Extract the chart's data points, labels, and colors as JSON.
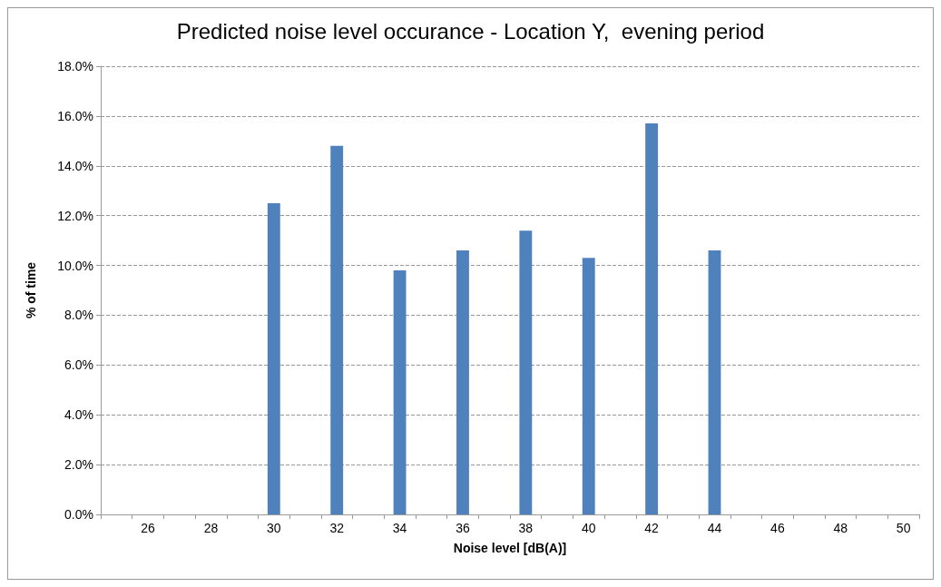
{
  "chart_data": {
    "type": "bar",
    "title": "Predicted noise level occurance - Location Y,  evening period",
    "xlabel": "Noise level [dB(A)]",
    "ylabel": "% of time",
    "categories": [
      null,
      "26",
      null,
      "28",
      null,
      "30",
      null,
      "32",
      null,
      "34",
      null,
      "36",
      null,
      "38",
      null,
      "40",
      null,
      "42",
      null,
      "44",
      null,
      "46",
      null,
      "48",
      null,
      "50"
    ],
    "values": [
      null,
      null,
      null,
      null,
      null,
      12.5,
      null,
      14.8,
      null,
      9.8,
      null,
      10.6,
      null,
      11.4,
      null,
      10.3,
      null,
      15.7,
      null,
      10.6,
      null,
      null,
      null,
      null,
      null,
      null
    ],
    "color": "#4f81bd",
    "ylim": [
      0,
      18
    ],
    "yticks": [
      {
        "value": 0,
        "label": "0.0%"
      },
      {
        "value": 2,
        "label": "2.0%"
      },
      {
        "value": 4,
        "label": "4.0%"
      },
      {
        "value": 6,
        "label": "6.0%"
      },
      {
        "value": 8,
        "label": "8.0%"
      },
      {
        "value": 10,
        "label": "10.0%"
      },
      {
        "value": 12,
        "label": "12.0%"
      },
      {
        "value": 14,
        "label": "14.0%"
      },
      {
        "value": 16,
        "label": "16.0%"
      },
      {
        "value": 18,
        "label": "18.0%"
      }
    ],
    "grid": "y"
  }
}
